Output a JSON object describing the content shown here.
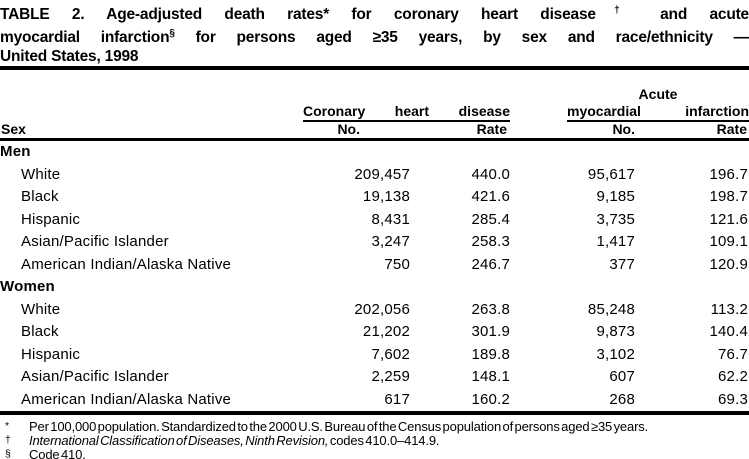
{
  "title": {
    "line1_main": "TABLE 2. Age-adjusted death rates* for coronary heart disease",
    "line1_sup": "†",
    "line1_tail": " and acute",
    "line2_main": "myocardial infarction",
    "line2_sup": "§",
    "line2_tail": " for persons aged ≥35 years, by sex and race/ethnicity —",
    "line3": "United States, 1998"
  },
  "table": {
    "sex_header": "Sex",
    "group_chd": {
      "label": "Coronary heart disease",
      "no": "No.",
      "rate": "Rate"
    },
    "group_ami": {
      "label_line1": "Acute",
      "label_line2": "myocardial infarction",
      "no": "No.",
      "rate": "Rate"
    },
    "sections": [
      {
        "label": "Men",
        "rows": [
          {
            "label": "White",
            "chd_no": "209,457",
            "chd_rate": "440.0",
            "ami_no": "95,617",
            "ami_rate": "196.7"
          },
          {
            "label": "Black",
            "chd_no": "19,138",
            "chd_rate": "421.6",
            "ami_no": "9,185",
            "ami_rate": "198.7"
          },
          {
            "label": "Hispanic",
            "chd_no": "8,431",
            "chd_rate": "285.4",
            "ami_no": "3,735",
            "ami_rate": "121.6"
          },
          {
            "label": "Asian/Pacific Islander",
            "chd_no": "3,247",
            "chd_rate": "258.3",
            "ami_no": "1,417",
            "ami_rate": "109.1"
          },
          {
            "label": "American Indian/Alaska Native",
            "chd_no": "750",
            "chd_rate": "246.7",
            "ami_no": "377",
            "ami_rate": "120.9"
          }
        ]
      },
      {
        "label": "Women",
        "rows": [
          {
            "label": "White",
            "chd_no": "202,056",
            "chd_rate": "263.8",
            "ami_no": "85,248",
            "ami_rate": "113.2"
          },
          {
            "label": "Black",
            "chd_no": "21,202",
            "chd_rate": "301.9",
            "ami_no": "9,873",
            "ami_rate": "140.4"
          },
          {
            "label": "Hispanic",
            "chd_no": "7,602",
            "chd_rate": "189.8",
            "ami_no": "3,102",
            "ami_rate": "76.7"
          },
          {
            "label": "Asian/Pacific Islander",
            "chd_no": "2,259",
            "chd_rate": "148.1",
            "ami_no": "607",
            "ami_rate": "62.2"
          },
          {
            "label": "American Indian/Alaska Native",
            "chd_no": "617",
            "chd_rate": "160.2",
            "ami_no": "268",
            "ami_rate": "69.3"
          }
        ]
      }
    ]
  },
  "footnotes": [
    {
      "marker": "*",
      "text": "Per 100,000 population. Standardized to the 2000 U.S. Bureau of the Census population of persons aged ≥35 years."
    },
    {
      "marker": "†",
      "italic": "International Classification of Diseases, Ninth Revision,",
      "text": " codes 410.0–414.9."
    },
    {
      "marker": "§",
      "text": "Code 410."
    }
  ]
}
